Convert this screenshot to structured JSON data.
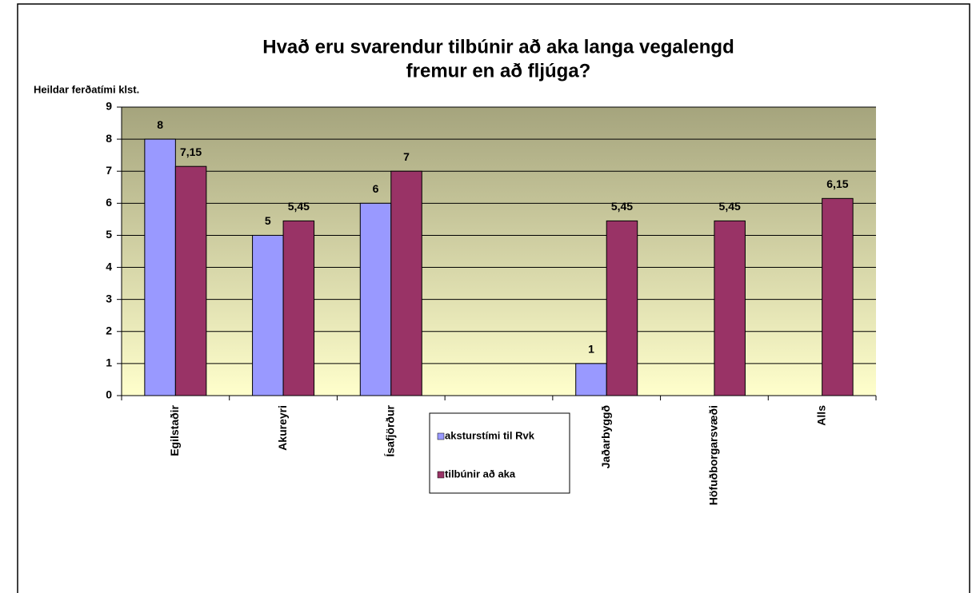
{
  "chart_data": {
    "type": "bar",
    "title": [
      "Hvað eru svarendur tilbúnir að aka langa vegalengd",
      "fremur en að fljúga?"
    ],
    "y_label": "Heildar ferðatími klst.",
    "categories": [
      "Egilstaðir",
      "Akureyri",
      "Ísafjörður",
      null,
      "Jaðarbyggð",
      "Höfuðborgarsvæði",
      "Alls"
    ],
    "series": [
      {
        "name": "aksturstími til Rvk",
        "color": "#9999ff",
        "values": [
          8,
          5,
          6,
          null,
          1,
          null,
          null
        ],
        "value_labels": [
          "8",
          "5",
          "6",
          null,
          "1",
          null,
          null
        ]
      },
      {
        "name": "tilbúnir að aka",
        "color": "#993366",
        "values": [
          7.15,
          5.45,
          7,
          null,
          5.45,
          5.45,
          6.15
        ],
        "value_labels": [
          "7,15",
          "5,45",
          "7",
          null,
          "5,45",
          "5,45",
          "6,15"
        ]
      }
    ],
    "ylim": [
      0,
      9
    ],
    "yticks": [
      0,
      1,
      2,
      3,
      4,
      5,
      6,
      7,
      8,
      9
    ],
    "grid": true
  }
}
